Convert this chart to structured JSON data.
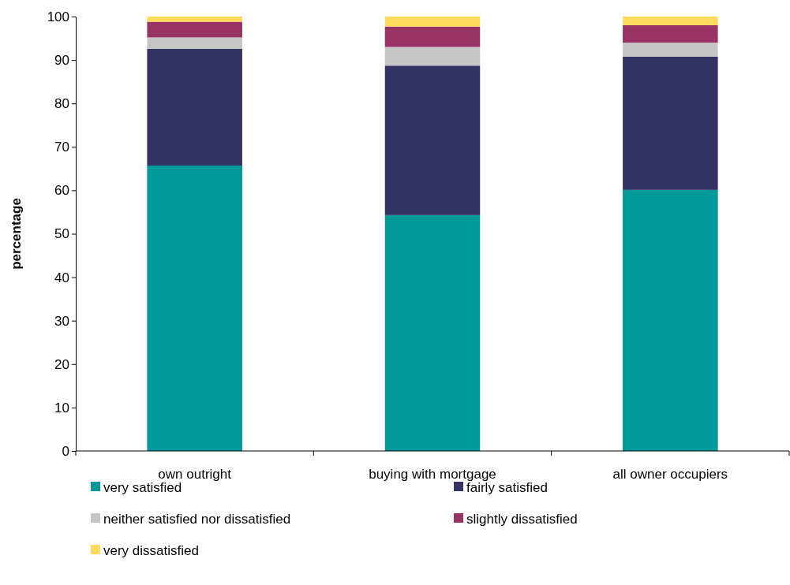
{
  "chart_data": {
    "type": "bar",
    "stacked": true,
    "ylabel": "percentage",
    "categories": [
      "own outright",
      "buying with mortgage",
      "all owner occupiers"
    ],
    "series": [
      {
        "name": "very satisfied",
        "color": "#009999",
        "values": [
          65.7,
          54.3,
          60.1
        ]
      },
      {
        "name": "fairly satisfied",
        "color": "#333366",
        "values": [
          26.9,
          34.4,
          30.7
        ]
      },
      {
        "name": "neither satisfied nor dissatisfied",
        "color": "#c6c6c6",
        "values": [
          2.6,
          4.3,
          3.2
        ]
      },
      {
        "name": "slightly dissatisfied",
        "color": "#993366",
        "values": [
          3.6,
          4.7,
          4.0
        ]
      },
      {
        "name": "very dissatisfied",
        "color": "#ffdb5c",
        "values": [
          1.2,
          2.3,
          2.0
        ]
      }
    ],
    "ylim": [
      0,
      100
    ],
    "yticks": [
      0,
      10,
      20,
      30,
      40,
      50,
      60,
      70,
      80,
      90,
      100
    ],
    "grid": false,
    "legend": "bottom"
  }
}
